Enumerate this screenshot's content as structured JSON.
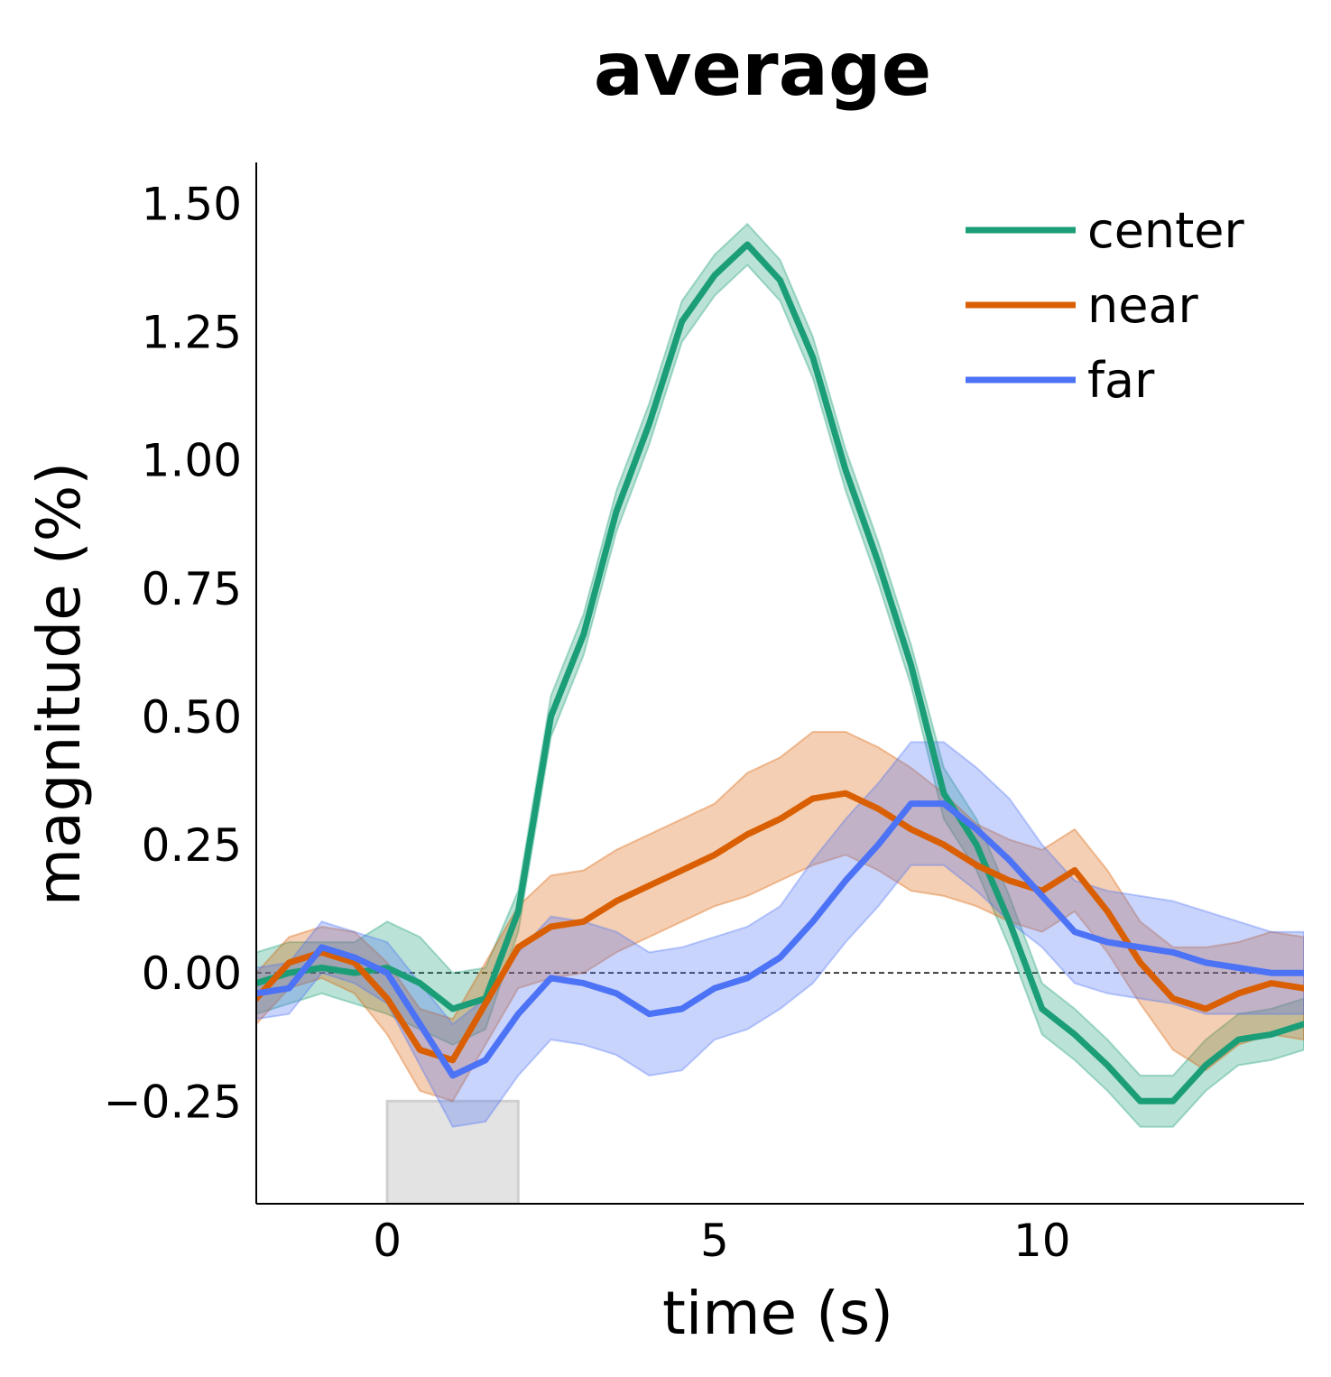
{
  "chart_data": {
    "type": "line",
    "title": "average",
    "xlabel": "time (s)",
    "ylabel": "magnitude (%)",
    "xlim": [
      -2,
      14
    ],
    "ylim": [
      -0.45,
      1.58
    ],
    "xticks": [
      0,
      5,
      10
    ],
    "xtick_labels": [
      "0",
      "5",
      "10"
    ],
    "yticks": [
      -0.25,
      0.0,
      0.25,
      0.5,
      0.75,
      1.0,
      1.25,
      1.5
    ],
    "ytick_labels": [
      "−0.25",
      "0.00",
      "0.25",
      "0.50",
      "0.75",
      "1.00",
      "1.25",
      "1.50"
    ],
    "grid": false,
    "legend_position": "top-right",
    "reference_line_y": 0.0,
    "stimulus_box": {
      "x": [
        0,
        2
      ],
      "y": [
        -0.45,
        -0.25
      ],
      "color": "#e3e3e3"
    },
    "x": [
      -2.0,
      -1.5,
      -1.0,
      -0.5,
      0.0,
      0.5,
      1.0,
      1.5,
      2.0,
      2.5,
      3.0,
      3.5,
      4.0,
      4.5,
      5.0,
      5.5,
      6.0,
      6.5,
      7.0,
      7.5,
      8.0,
      8.5,
      9.0,
      9.5,
      10.0,
      10.5,
      11.0,
      11.5,
      12.0,
      12.5,
      13.0,
      13.5,
      14.0
    ],
    "series": [
      {
        "name": "center",
        "color": "#1b9e77",
        "values": [
          -0.02,
          0.0,
          0.01,
          0.0,
          0.01,
          -0.02,
          -0.07,
          -0.05,
          0.12,
          0.5,
          0.66,
          0.9,
          1.07,
          1.27,
          1.36,
          1.42,
          1.35,
          1.2,
          0.98,
          0.8,
          0.6,
          0.35,
          0.25,
          0.1,
          -0.07,
          -0.12,
          -0.18,
          -0.25,
          -0.25,
          -0.18,
          -0.13,
          -0.12,
          -0.1
        ],
        "band": [
          0.06,
          0.06,
          0.05,
          0.06,
          0.09,
          0.09,
          0.07,
          0.06,
          0.04,
          0.04,
          0.04,
          0.04,
          0.04,
          0.04,
          0.04,
          0.04,
          0.04,
          0.04,
          0.04,
          0.04,
          0.04,
          0.05,
          0.05,
          0.05,
          0.05,
          0.05,
          0.05,
          0.05,
          0.05,
          0.05,
          0.05,
          0.05,
          0.05
        ]
      },
      {
        "name": "near",
        "color": "#d95f02",
        "values": [
          -0.05,
          0.02,
          0.04,
          0.02,
          -0.05,
          -0.15,
          -0.17,
          -0.06,
          0.05,
          0.09,
          0.1,
          0.14,
          0.17,
          0.2,
          0.23,
          0.27,
          0.3,
          0.34,
          0.35,
          0.32,
          0.28,
          0.25,
          0.21,
          0.18,
          0.16,
          0.2,
          0.12,
          0.02,
          -0.05,
          -0.07,
          -0.04,
          -0.02,
          -0.03
        ],
        "band": [
          0.05,
          0.05,
          0.05,
          0.06,
          0.07,
          0.08,
          0.08,
          0.08,
          0.08,
          0.1,
          0.1,
          0.1,
          0.1,
          0.1,
          0.1,
          0.12,
          0.12,
          0.13,
          0.12,
          0.12,
          0.12,
          0.1,
          0.08,
          0.08,
          0.08,
          0.08,
          0.08,
          0.08,
          0.1,
          0.12,
          0.1,
          0.1,
          0.1
        ]
      },
      {
        "name": "far",
        "color": "#4c72f5",
        "values": [
          -0.04,
          -0.03,
          0.05,
          0.03,
          0.0,
          -0.1,
          -0.2,
          -0.17,
          -0.08,
          -0.01,
          -0.02,
          -0.04,
          -0.08,
          -0.07,
          -0.03,
          -0.01,
          0.03,
          0.1,
          0.18,
          0.25,
          0.33,
          0.33,
          0.28,
          0.22,
          0.15,
          0.08,
          0.06,
          0.05,
          0.04,
          0.02,
          0.01,
          0.0,
          0.0
        ],
        "band": [
          0.05,
          0.05,
          0.05,
          0.05,
          0.06,
          0.08,
          0.1,
          0.12,
          0.12,
          0.12,
          0.12,
          0.12,
          0.12,
          0.12,
          0.1,
          0.1,
          0.1,
          0.12,
          0.12,
          0.12,
          0.12,
          0.12,
          0.12,
          0.12,
          0.1,
          0.1,
          0.1,
          0.1,
          0.1,
          0.1,
          0.09,
          0.08,
          0.08
        ]
      }
    ]
  }
}
